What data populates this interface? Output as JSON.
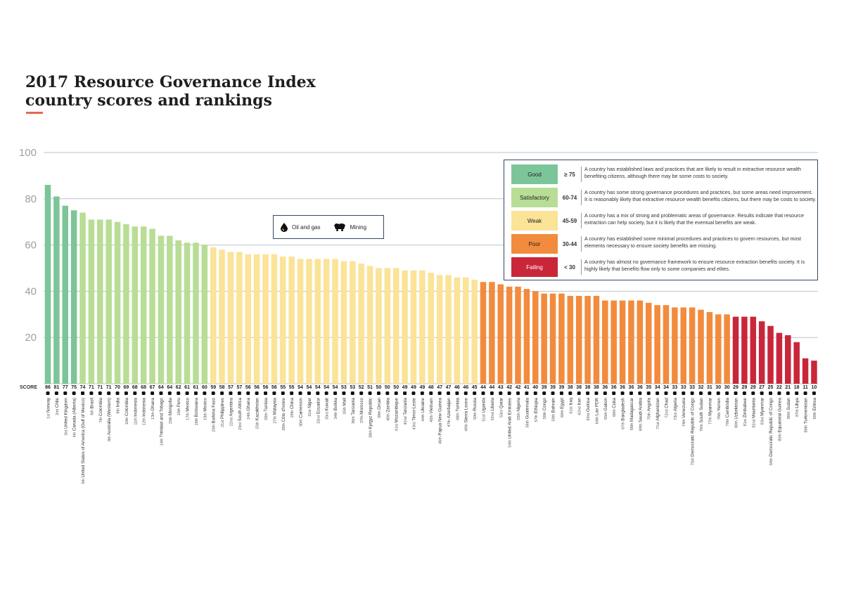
{
  "title": {
    "line1": "2017 Resource Governance Index",
    "line2": "country scores and rankings"
  },
  "resource_legend": {
    "oil_label": "Oil and gas",
    "mining_label": "Mining"
  },
  "category_legend": [
    {
      "label": "Good",
      "range": "≥ 75",
      "color": "#7cc598",
      "text_color": "#222",
      "description": [
        "A country has established laws and practices that are likely to result in extractive resource wealth",
        "benefiting citizens, although there may be some costs to society."
      ]
    },
    {
      "label": "Satisfactory",
      "range": "60-74",
      "color": "#b8dd95",
      "text_color": "#222",
      "description": [
        "A country has some strong governance procedures and practices, but some areas need improvement.",
        "It is reasonably likely that extractive resource wealth benefits citizens, but there may be costs to society."
      ]
    },
    {
      "label": "Weak",
      "range": "45-59",
      "color": "#fbe397",
      "text_color": "#222",
      "description": [
        "A country has a mix of strong and problematic areas of governance. Results indicate that resource",
        "extraction can help society, but it is likely that the eventual benefits are weak."
      ]
    },
    {
      "label": "Poor",
      "range": "30-44",
      "color": "#f28b3d",
      "text_color": "#222",
      "description": [
        "A country has established some minimal procedures and practices to govern resources, but most",
        "elements necessary to ensure society benefits are missing."
      ]
    },
    {
      "label": "Failing",
      "range": "< 30",
      "color": "#c9263a",
      "text_color": "#ffffff",
      "description": [
        "A country has almost no governance framework to ensure resource extraction benefits society. It is",
        "highly likely that benefits flow only to some companies and elites."
      ]
    }
  ],
  "chart_data": {
    "type": "bar",
    "title": "2017 Resource Governance Index country scores and rankings",
    "score_label": "SCORE",
    "ylim": [
      0,
      100
    ],
    "yticks": [
      20,
      40,
      60,
      80,
      100
    ],
    "gridlines": true,
    "color_thresholds": {
      "good": 75,
      "satisfactory": 60,
      "weak": 45,
      "poor": 30
    },
    "ranks": [
      "1st",
      "2nd",
      "3rd",
      "4th",
      "5th",
      "6th",
      "7th",
      "8th",
      "9th",
      "10th",
      "11th",
      "12th",
      "13th",
      "14th",
      "15th",
      "16th",
      "17th",
      "18th",
      "19th",
      "20th",
      "21st",
      "22nd",
      "23rd",
      "24th",
      "25th",
      "26th",
      "27th",
      "28th",
      "29th",
      "30th",
      "31st",
      "32nd",
      "33rd",
      "34th",
      "35th",
      "36th",
      "37th",
      "38th",
      "39th",
      "40th",
      "41st",
      "42nd",
      "43rd",
      "44th",
      "45th",
      "46th",
      "47th",
      "48th",
      "49th",
      "50th",
      "51st",
      "52nd",
      "53rd",
      "54th",
      "55th",
      "56th",
      "57th",
      "58th",
      "59th",
      "60th",
      "61st",
      "62nd",
      "63rd",
      "64th",
      "65th",
      "66th",
      "67th",
      "68th",
      "69th",
      "70th",
      "71st",
      "72nd",
      "73rd",
      "74th",
      "75th",
      "76th",
      "77th",
      "78th",
      "79th",
      "80th",
      "81st",
      "82nd",
      "83rd",
      "84th",
      "85th",
      "86th",
      "87th",
      "88th",
      "89th"
    ],
    "countries": [
      "Norway",
      "Chile",
      "United Kingdom",
      "Canada (Alberta)",
      "United States of America (Gulf of Mexico)",
      "Brazil",
      "Colombia",
      "Australia (Western)",
      "India",
      "Colombia",
      "Indonesia",
      "Indonesia",
      "Ghana",
      "Trinidad and Tobago",
      "Mongolia",
      "Peru",
      "Mexico",
      "Botswana",
      "Mexico",
      "Burkina Faso",
      "Philippines",
      "Argentina",
      "South Africa",
      "Ghana",
      "Kazakhstan",
      "Tunisia",
      "Malaysia",
      "Côte d'Ivoire",
      "China",
      "Cameroon",
      "Niger",
      "Ecuador",
      "Kuwait",
      "Bolivia",
      "Mali",
      "Tanzania",
      "Morocco",
      "Kyrgyz Republic",
      "Oman",
      "Zambia",
      "Mozambique",
      "Tanzania",
      "Timor-Leste",
      "Ukraine",
      "Vietnam",
      "Papua New Guinea",
      "Azerbaijan",
      "Tunisia",
      "Sierra Leone",
      "Russia",
      "Uganda",
      "Liberia",
      "Qatar",
      "United Arab Emirates",
      "Nigeria",
      "Guatemala",
      "Ethiopia",
      "Congo",
      "Bahrain",
      "Egypt",
      "Iraq",
      "Iran",
      "Guinea",
      "Lao PDR",
      "Gabon",
      "Cuba",
      "Bangladesh",
      "Madagascar",
      "Saudi Arabia",
      "Angola",
      "Afghanistan",
      "Chad",
      "Algeria",
      "Venezuela",
      "Democratic Republic of Congo",
      "South Sudan",
      "Myanmar",
      "Yemen",
      "Cambodia",
      "Uzbekistan",
      "Zimbabwe",
      "Mauritania",
      "Myanmar",
      "Democratic Republic of Congo",
      "Equatorial Guinea",
      "Sudan",
      "Libya",
      "Turkmenistan",
      "Eritrea"
    ],
    "values": [
      86,
      81,
      77,
      75,
      74,
      71,
      71,
      71,
      70,
      69,
      68,
      68,
      67,
      64,
      64,
      62,
      61,
      61,
      60,
      59,
      58,
      57,
      57,
      56,
      56,
      56,
      56,
      55,
      55,
      54,
      54,
      54,
      54,
      54,
      53,
      53,
      52,
      51,
      50,
      50,
      50,
      49,
      49,
      49,
      48,
      47,
      47,
      46,
      46,
      45,
      44,
      44,
      43,
      42,
      42,
      41,
      40,
      39,
      39,
      39,
      38,
      38,
      38,
      38,
      36,
      36,
      36,
      36,
      36,
      35,
      34,
      34,
      33,
      33,
      33,
      32,
      31,
      30,
      30,
      29,
      29,
      29,
      27,
      25,
      22,
      21,
      18,
      11,
      10
    ]
  }
}
